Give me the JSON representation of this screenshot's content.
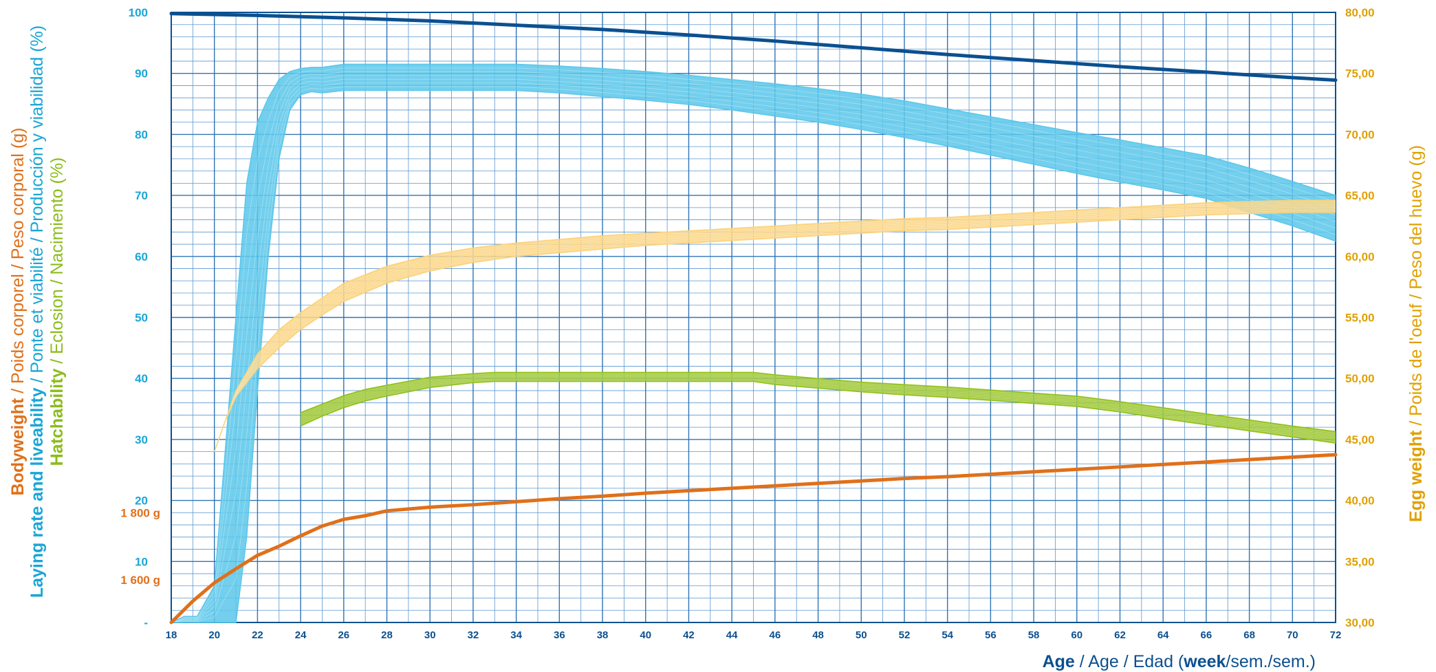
{
  "chart_data": {
    "type": "line",
    "x": {
      "label_parts": {
        "b1": "Age",
        "n1": " / Age / Edad (",
        "b2": "week",
        "n2": "/sem./sem.)"
      },
      "range": [
        18,
        72
      ],
      "ticks": [
        18,
        20,
        22,
        24,
        26,
        28,
        30,
        32,
        34,
        36,
        38,
        40,
        42,
        44,
        46,
        48,
        50,
        52,
        54,
        56,
        58,
        60,
        62,
        64,
        66,
        68,
        70,
        72
      ],
      "tick_labels": [
        "18",
        "20",
        "22",
        "24",
        "26",
        "28",
        "30",
        "32",
        "34",
        "36",
        "38",
        "40",
        "42",
        "44",
        "46",
        "48",
        "50",
        "52",
        "54",
        "56",
        "58",
        "60",
        "62",
        "64",
        "66",
        "68",
        "70",
        "72"
      ]
    },
    "y_left": {
      "range": [
        0,
        100
      ],
      "tick_labels": [
        "-",
        "10",
        "20",
        "30",
        "40",
        "50",
        "60",
        "70",
        "80",
        "90",
        "100"
      ],
      "bodyweight_labels": [
        {
          "text": "1 600 g",
          "at": 7
        },
        {
          "text": "1 800 g",
          "at": 18
        }
      ],
      "title_lines": [
        {
          "bold": "Bodyweight",
          "normal": " / Poids corporel / Peso corporal (g)",
          "color": "#e0701a"
        },
        {
          "bold": "Laying rate and liveability",
          "normal": " / Ponte et viabilité / Producción y viabilidad (%)",
          "color": "#1aa6d6"
        },
        {
          "bold": "Hatchability",
          "normal": " / Eclosion / Nacimiento (%)",
          "color": "#8cbc1c"
        }
      ]
    },
    "y_right": {
      "range": [
        30,
        80
      ],
      "tick_labels": [
        "30,00",
        "35,00",
        "40,00",
        "45,00",
        "50,00",
        "55,00",
        "60,00",
        "65,00",
        "70,00",
        "75,00",
        "80,00"
      ],
      "title": {
        "bold": "Egg weight",
        "normal": " / Poids de l'oeuf / Peso del huevo (g)",
        "color": "#e0a100"
      }
    },
    "grid": true,
    "series": [
      {
        "id": "liveability",
        "color": "#0b5090",
        "axis": "left",
        "x": [
          18,
          22,
          26,
          30,
          34,
          38,
          42,
          46,
          50,
          54,
          58,
          62,
          66,
          70,
          72
        ],
        "y": [
          99.8,
          99.5,
          99.1,
          98.6,
          97.9,
          97.2,
          96.3,
          95.3,
          94.2,
          93.1,
          92.1,
          91.1,
          90.2,
          89.3,
          88.9
        ]
      },
      {
        "id": "laying-rate",
        "color": "#5bc7ea",
        "axis": "left",
        "band": true,
        "x": [
          18,
          18.6,
          19.2,
          20,
          20.5,
          21,
          21.5,
          22,
          22.5,
          23,
          23.5,
          24,
          24.5,
          25,
          26,
          28,
          30,
          32,
          34,
          36,
          38,
          40,
          42,
          44,
          46,
          48,
          50,
          52,
          54,
          56,
          58,
          60,
          62,
          64,
          66,
          68,
          70,
          72
        ],
        "lower": [
          0,
          0,
          0,
          0,
          0,
          0,
          14,
          38,
          60,
          76,
          84,
          86.5,
          87,
          86.8,
          87.2,
          87.2,
          87.2,
          87.2,
          87.2,
          86.8,
          86.2,
          85.6,
          84.9,
          84,
          83,
          82,
          80.8,
          79.5,
          78.1,
          76.6,
          75.1,
          73.6,
          72.2,
          70.9,
          69.5,
          67.2,
          65,
          62.5
        ],
        "upper": [
          0,
          1,
          1,
          6,
          28,
          50,
          72,
          82,
          86,
          89,
          90.3,
          90.8,
          91,
          91,
          91.5,
          91.5,
          91.5,
          91.5,
          91.5,
          91.2,
          90.8,
          90.3,
          89.7,
          89,
          88.3,
          87.5,
          86.6,
          85.5,
          84.2,
          82.9,
          81.6,
          80.3,
          79.1,
          77.8,
          76.5,
          74.5,
          72.3,
          70
        ]
      },
      {
        "id": "egg-weight",
        "color": "#fbd47f",
        "axis": "right",
        "band": true,
        "x": [
          20,
          20.5,
          21,
          22,
          23,
          24,
          25,
          26,
          28,
          30,
          32,
          34,
          36,
          38,
          40,
          42,
          44,
          46,
          48,
          50,
          52,
          54,
          56,
          58,
          60,
          62,
          64,
          66,
          68,
          70,
          72
        ],
        "lower": [
          44,
          46.5,
          48.5,
          50.8,
          52.5,
          54,
          55.2,
          56.3,
          57.8,
          58.8,
          59.5,
          60,
          60.3,
          60.6,
          60.9,
          61.1,
          61.3,
          61.5,
          61.7,
          61.9,
          62.1,
          62.2,
          62.4,
          62.6,
          62.8,
          63,
          63.2,
          63.4,
          63.5,
          63.6,
          63.6
        ],
        "upper": [
          44,
          46.5,
          49,
          52,
          54,
          55.4,
          56.6,
          57.8,
          59.2,
          60.1,
          60.7,
          61.1,
          61.4,
          61.7,
          61.9,
          62.1,
          62.3,
          62.5,
          62.7,
          62.9,
          63.1,
          63.2,
          63.4,
          63.6,
          63.8,
          64,
          64.2,
          64.4,
          64.5,
          64.6,
          64.6
        ]
      },
      {
        "id": "hatchability",
        "color": "#94c21e",
        "axis": "left",
        "band": true,
        "x": [
          24,
          25,
          26,
          27,
          28,
          30,
          32,
          33,
          34,
          36,
          38,
          40,
          42,
          44,
          45,
          46,
          48,
          50,
          52,
          54,
          56,
          58,
          60,
          62,
          64,
          66,
          68,
          70,
          72
        ],
        "lower": [
          32.2,
          33.8,
          35.2,
          36.3,
          37.1,
          38.5,
          39.3,
          39.5,
          39.5,
          39.5,
          39.5,
          39.5,
          39.5,
          39.5,
          39.5,
          39,
          38.4,
          37.8,
          37.3,
          36.9,
          36.4,
          35.9,
          35.4,
          34.5,
          33.4,
          32.4,
          31.4,
          30.4,
          29.4
        ],
        "upper": [
          34.4,
          35.8,
          37.2,
          38.2,
          38.9,
          40.2,
          40.8,
          41,
          41,
          41,
          41,
          41,
          41,
          41,
          41,
          40.6,
          40,
          39.4,
          39,
          38.6,
          38.1,
          37.6,
          37.1,
          36.2,
          35.2,
          34.2,
          33.2,
          32.2,
          31.3
        ]
      },
      {
        "id": "bodyweight",
        "color": "#e0701a",
        "axis": "left",
        "x": [
          18,
          19,
          20,
          21,
          22,
          23,
          24,
          25,
          26,
          27,
          28,
          30,
          32,
          34,
          36,
          38,
          40,
          42,
          44,
          46,
          48,
          50,
          52,
          54,
          56,
          58,
          60,
          62,
          64,
          66,
          68,
          70,
          72
        ],
        "y": [
          0,
          3.5,
          6.5,
          8.8,
          11,
          12.5,
          14.2,
          15.8,
          16.9,
          17.5,
          18.3,
          18.9,
          19.3,
          19.8,
          20.3,
          20.7,
          21.2,
          21.6,
          22,
          22.4,
          22.8,
          23.2,
          23.6,
          23.9,
          24.3,
          24.7,
          25.1,
          25.5,
          25.9,
          26.3,
          26.7,
          27.1,
          27.5
        ]
      }
    ]
  }
}
